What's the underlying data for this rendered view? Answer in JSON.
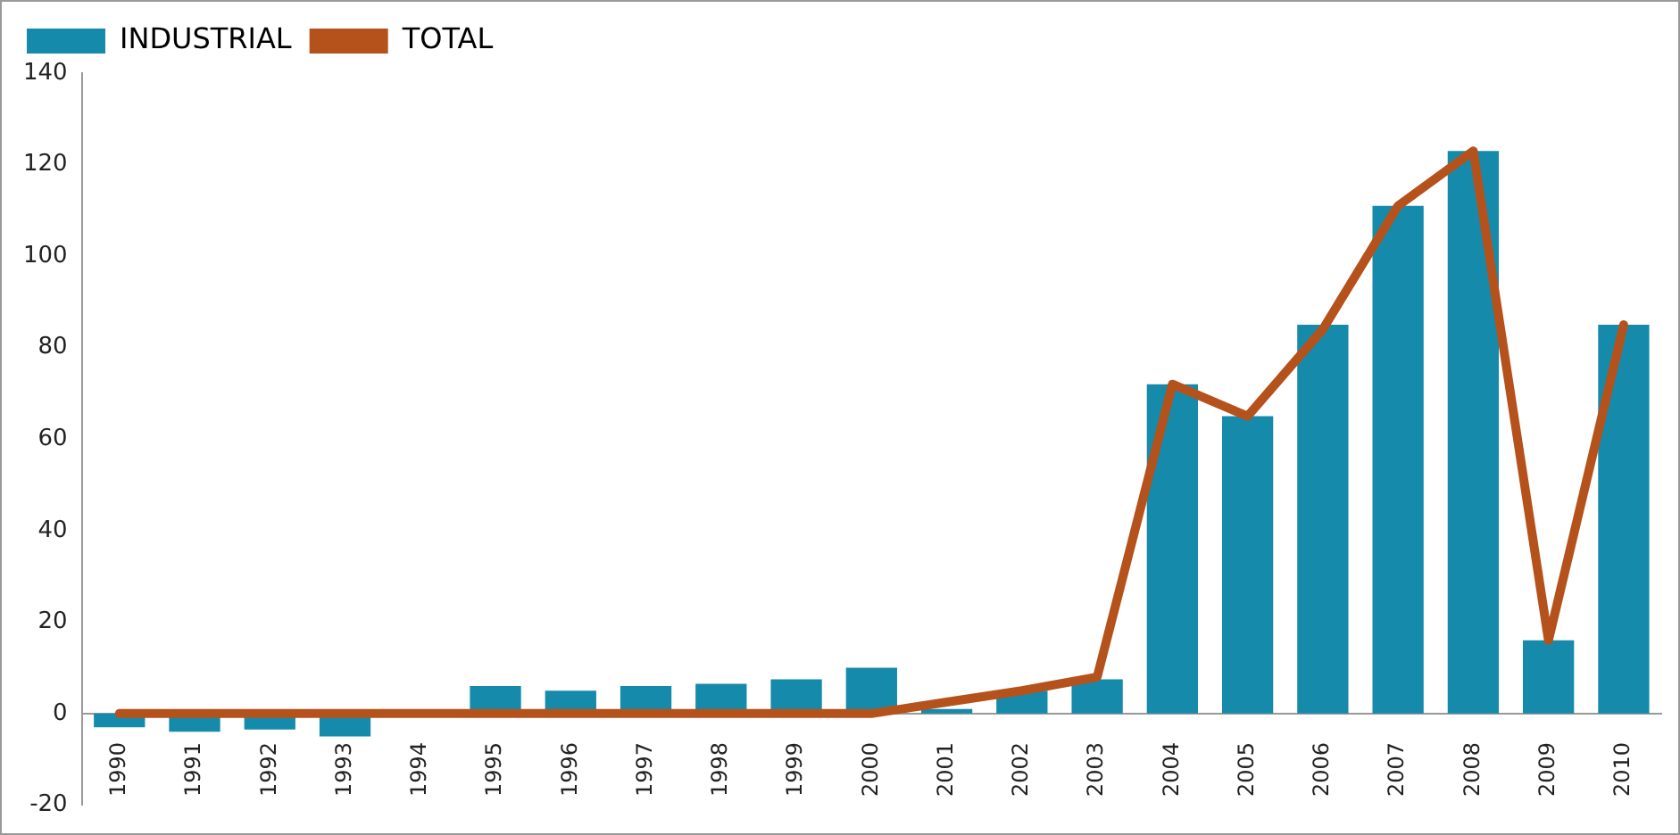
{
  "chart_data": {
    "type": "bar",
    "categories": [
      "1990",
      "1991",
      "1992",
      "1993",
      "1994",
      "1995",
      "1996",
      "1997",
      "1998",
      "1999",
      "2000",
      "2001",
      "2002",
      "2003",
      "2004",
      "2005",
      "2006",
      "2007",
      "2008",
      "2009",
      "2010"
    ],
    "series": [
      {
        "name": "INDUSTRIAL",
        "color": "#168aab",
        "values": [
          -3,
          -4,
          -3.5,
          -5,
          0,
          6,
          5,
          6,
          6.5,
          7.5,
          10,
          1,
          5,
          7.5,
          72,
          65,
          85,
          111,
          123,
          16,
          85
        ]
      },
      {
        "name": "TOTAL",
        "type": "line",
        "color": "#b5521b",
        "values": [
          0,
          0,
          0,
          0,
          0,
          0,
          0,
          0,
          0,
          0,
          0,
          2.5,
          5,
          8,
          72,
          65,
          84,
          111,
          123,
          16,
          85
        ]
      }
    ],
    "ylim": [
      -20,
      140
    ],
    "yticks": [
      -20,
      0,
      20,
      40,
      60,
      80,
      100,
      120,
      140
    ],
    "grid": false,
    "legend": "top left",
    "marker": "none",
    "line_style": "solid"
  }
}
